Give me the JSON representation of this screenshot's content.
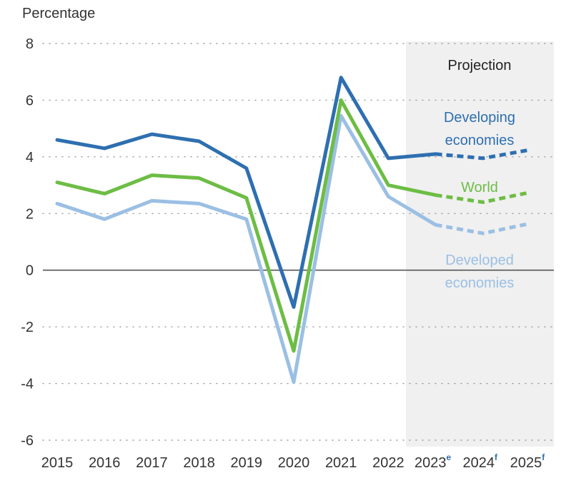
{
  "chart_data": {
    "type": "line",
    "ylabel": "Percentage",
    "ylim": [
      -6,
      8
    ],
    "yticks": [
      "8",
      "6",
      "4",
      "2",
      "0",
      "-2",
      "-4",
      "-6"
    ],
    "ytick_values": [
      8,
      6,
      4,
      2,
      0,
      -2,
      -4,
      -6
    ],
    "categories": [
      "2015",
      "2016",
      "2017",
      "2018",
      "2019",
      "2020",
      "2021",
      "2022",
      "2023",
      "2024",
      "2025"
    ],
    "category_superscripts": [
      "",
      "",
      "",
      "",
      "",
      "",
      "",
      "",
      "e",
      "f",
      "f"
    ],
    "projection_label": "Projection",
    "projection_start": "2023",
    "grid": "dotted horizontal",
    "series": [
      {
        "name": "Developing economies",
        "name_lines": [
          "Developing",
          "economies"
        ],
        "color": "#2e6fb0",
        "values": [
          4.6,
          4.3,
          4.8,
          4.55,
          3.6,
          -1.3,
          6.8,
          3.95,
          4.1,
          3.95,
          4.25
        ]
      },
      {
        "name": "World",
        "name_lines": [
          "World"
        ],
        "color": "#6dbd45",
        "values": [
          3.1,
          2.7,
          3.35,
          3.25,
          2.55,
          -2.85,
          6.0,
          3.0,
          2.65,
          2.4,
          2.75
        ]
      },
      {
        "name": "Developed economies",
        "name_lines": [
          "Developed",
          "economies"
        ],
        "color": "#9bbfe4",
        "values": [
          2.35,
          1.8,
          2.45,
          2.35,
          1.8,
          -3.95,
          5.45,
          2.6,
          1.6,
          1.3,
          1.65
        ]
      }
    ]
  }
}
